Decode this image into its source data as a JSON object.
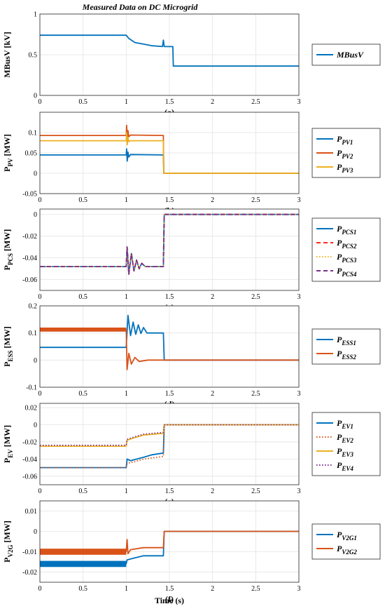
{
  "chart_data": {
    "title": "Measured Data on DC Microgrid",
    "xlabel": "Time (s)",
    "x_ticks": [
      "0",
      "0.5",
      "1",
      "1.5",
      "2",
      "2.5",
      "3"
    ],
    "panels": [
      {
        "type": "line",
        "label": "(a)",
        "ylabel": {
          "main": "MBusV [kV]",
          "sub": ""
        },
        "ylim": [
          0,
          1.0
        ],
        "y_ticks": [
          0,
          0.5,
          1
        ],
        "y_tick_labels": [
          "0",
          "0.5",
          "1"
        ],
        "xlim": [
          0,
          3
        ],
        "grid": true,
        "legend_position": "right",
        "series": [
          {
            "name": "MBusV",
            "label_sub": "",
            "color": "#0072BD",
            "dash": "solid",
            "points": [
              [
                0,
                0.74
              ],
              [
                1.0,
                0.74
              ],
              [
                1.03,
                0.7
              ],
              [
                1.1,
                0.65
              ],
              [
                1.2,
                0.63
              ],
              [
                1.3,
                0.61
              ],
              [
                1.42,
                0.6
              ],
              [
                1.43,
                0.68
              ],
              [
                1.44,
                0.6
              ],
              [
                1.54,
                0.6
              ],
              [
                1.545,
                0.36
              ],
              [
                3,
                0.36
              ]
            ]
          }
        ]
      },
      {
        "type": "line",
        "label": "(b)",
        "ylabel": {
          "main": "P",
          "sub": "PV",
          "unit": " [MW]"
        },
        "ylim": [
          -0.05,
          0.15
        ],
        "y_ticks": [
          -0.05,
          0,
          0.05,
          0.1
        ],
        "y_tick_labels": [
          "-0.05",
          "0",
          "0.05",
          "0.1"
        ],
        "xlim": [
          0,
          3
        ],
        "grid": true,
        "legend_position": "right",
        "series": [
          {
            "name": "P",
            "label_sub": "PV1",
            "color": "#0072BD",
            "dash": "solid",
            "points": [
              [
                0,
                0.045
              ],
              [
                1.0,
                0.045
              ],
              [
                1.005,
                0.06
              ],
              [
                1.012,
                0.03
              ],
              [
                1.02,
                0.052
              ],
              [
                1.03,
                0.04
              ],
              [
                1.05,
                0.046
              ],
              [
                1.43,
                0.045
              ],
              [
                1.435,
                0
              ],
              [
                3,
                0
              ]
            ]
          },
          {
            "name": "P",
            "label_sub": "PV2",
            "color": "#D95319",
            "dash": "solid",
            "points": [
              [
                0,
                0.093
              ],
              [
                1.0,
                0.093
              ],
              [
                1.005,
                0.118
              ],
              [
                1.012,
                0.085
              ],
              [
                1.02,
                0.105
              ],
              [
                1.03,
                0.09
              ],
              [
                1.05,
                0.094
              ],
              [
                1.43,
                0.093
              ],
              [
                1.435,
                0
              ],
              [
                3,
                0
              ]
            ]
          },
          {
            "name": "P",
            "label_sub": "PV3",
            "color": "#EDB120",
            "dash": "solid",
            "points": [
              [
                0,
                0.08
              ],
              [
                1.0,
                0.08
              ],
              [
                1.005,
                0.1
              ],
              [
                1.012,
                0.07
              ],
              [
                1.02,
                0.088
              ],
              [
                1.03,
                0.078
              ],
              [
                1.05,
                0.08
              ],
              [
                1.43,
                0.08
              ],
              [
                1.435,
                0
              ],
              [
                3,
                0
              ]
            ]
          }
        ]
      },
      {
        "type": "line",
        "label": "(c)",
        "ylabel": {
          "main": "P",
          "sub": "PCS",
          "unit": " [MW]"
        },
        "ylim": [
          -0.07,
          0.005
        ],
        "y_ticks": [
          -0.06,
          -0.04,
          -0.02,
          0
        ],
        "y_tick_labels": [
          "-0.06",
          "-0.04",
          "-0.02",
          "0"
        ],
        "xlim": [
          0,
          3
        ],
        "grid": true,
        "legend_position": "right",
        "series": [
          {
            "name": "P",
            "label_sub": "PCS1",
            "color": "#0072BD",
            "dash": "solid",
            "points": [
              [
                0,
                -0.048
              ],
              [
                1.0,
                -0.048
              ],
              [
                1.01,
                -0.03
              ],
              [
                1.03,
                -0.055
              ],
              [
                1.06,
                -0.036
              ],
              [
                1.09,
                -0.052
              ],
              [
                1.12,
                -0.042
              ],
              [
                1.15,
                -0.05
              ],
              [
                1.18,
                -0.045
              ],
              [
                1.22,
                -0.048
              ],
              [
                1.43,
                -0.048
              ],
              [
                1.44,
                0
              ],
              [
                3,
                0
              ]
            ]
          },
          {
            "name": "P",
            "label_sub": "PCS2",
            "color": "#FF2A1A",
            "dash": "dashed",
            "points": [
              [
                0,
                -0.048
              ],
              [
                1.0,
                -0.048
              ],
              [
                1.01,
                -0.03
              ],
              [
                1.03,
                -0.055
              ],
              [
                1.06,
                -0.036
              ],
              [
                1.09,
                -0.052
              ],
              [
                1.12,
                -0.042
              ],
              [
                1.15,
                -0.05
              ],
              [
                1.18,
                -0.045
              ],
              [
                1.22,
                -0.048
              ],
              [
                1.43,
                -0.048
              ],
              [
                1.44,
                0
              ],
              [
                3,
                0
              ]
            ]
          },
          {
            "name": "P",
            "label_sub": "PCS3",
            "color": "#EDB120",
            "dash": "dotted",
            "points": [
              [
                0,
                -0.048
              ],
              [
                1.0,
                -0.048
              ],
              [
                1.01,
                -0.03
              ],
              [
                1.03,
                -0.055
              ],
              [
                1.06,
                -0.036
              ],
              [
                1.09,
                -0.052
              ],
              [
                1.12,
                -0.042
              ],
              [
                1.15,
                -0.05
              ],
              [
                1.18,
                -0.045
              ],
              [
                1.22,
                -0.048
              ],
              [
                1.43,
                -0.048
              ],
              [
                1.44,
                0
              ],
              [
                3,
                0
              ]
            ]
          },
          {
            "name": "P",
            "label_sub": "PCS4",
            "color": "#7E2F8E",
            "dash": "dashed",
            "points": [
              [
                0,
                -0.048
              ],
              [
                1.0,
                -0.048
              ],
              [
                1.01,
                -0.03
              ],
              [
                1.03,
                -0.055
              ],
              [
                1.06,
                -0.036
              ],
              [
                1.09,
                -0.052
              ],
              [
                1.12,
                -0.042
              ],
              [
                1.15,
                -0.05
              ],
              [
                1.18,
                -0.045
              ],
              [
                1.22,
                -0.048
              ],
              [
                1.43,
                -0.048
              ],
              [
                1.44,
                0
              ],
              [
                3,
                0
              ]
            ]
          }
        ]
      },
      {
        "type": "line",
        "label": "(d)",
        "ylabel": {
          "main": "P",
          "sub": "ESS",
          "unit": " [MW]"
        },
        "ylim": [
          -0.1,
          0.2
        ],
        "y_ticks": [
          -0.1,
          0,
          0.1,
          0.2
        ],
        "y_tick_labels": [
          "-0.1",
          "0",
          "0.1",
          "0.2"
        ],
        "xlim": [
          0,
          3
        ],
        "grid": true,
        "legend_position": "right",
        "series": [
          {
            "name": "P",
            "label_sub": "ESS1",
            "color": "#0072BD",
            "dash": "solid",
            "points": [
              [
                0,
                0.047
              ],
              [
                1.0,
                0.047
              ],
              [
                1.02,
                0.165
              ],
              [
                1.05,
                0.09
              ],
              [
                1.08,
                0.14
              ],
              [
                1.11,
                0.095
              ],
              [
                1.14,
                0.13
              ],
              [
                1.17,
                0.098
              ],
              [
                1.2,
                0.12
              ],
              [
                1.24,
                0.1
              ],
              [
                1.43,
                0.1
              ],
              [
                1.44,
                0
              ],
              [
                3,
                0
              ]
            ]
          },
          {
            "name": "P",
            "label_sub": "ESS2",
            "color": "#D95319",
            "dash": "solid",
            "band": [
              0.105,
              0.12
            ],
            "points": [
              [
                0,
                0.113
              ],
              [
                1.0,
                0.113
              ],
              [
                1.01,
                -0.035
              ],
              [
                1.03,
                0.025
              ],
              [
                1.06,
                -0.015
              ],
              [
                1.1,
                0.01
              ],
              [
                1.15,
                -0.005
              ],
              [
                1.25,
                0
              ],
              [
                3,
                0
              ]
            ]
          }
        ]
      },
      {
        "type": "line",
        "label": "(e)",
        "ylabel": {
          "main": "P",
          "sub": "EV",
          "unit": " [MW]"
        },
        "ylim": [
          -0.07,
          0.025
        ],
        "y_ticks": [
          -0.06,
          -0.04,
          -0.02,
          0,
          0.02
        ],
        "y_tick_labels": [
          "-0.06",
          "-0.04",
          "-0.02",
          "0",
          "0.02"
        ],
        "xlim": [
          0,
          3
        ],
        "grid": true,
        "legend_position": "right",
        "series": [
          {
            "name": "P",
            "label_sub": "EV1",
            "color": "#0072BD",
            "dash": "solid",
            "points": [
              [
                0,
                -0.05
              ],
              [
                1.0,
                -0.05
              ],
              [
                1.01,
                -0.04
              ],
              [
                1.05,
                -0.042
              ],
              [
                1.2,
                -0.038
              ],
              [
                1.3,
                -0.035
              ],
              [
                1.43,
                -0.033
              ],
              [
                1.44,
                0
              ],
              [
                3,
                0
              ]
            ]
          },
          {
            "name": "P",
            "label_sub": "EV2",
            "color": "#D95319",
            "dash": "dotted",
            "points": [
              [
                0,
                -0.05
              ],
              [
                1.0,
                -0.05
              ],
              [
                1.01,
                -0.045
              ],
              [
                1.1,
                -0.043
              ],
              [
                1.2,
                -0.04
              ],
              [
                1.43,
                -0.037
              ],
              [
                1.44,
                0
              ],
              [
                3,
                0
              ]
            ]
          },
          {
            "name": "P",
            "label_sub": "EV3",
            "color": "#EDB120",
            "dash": "solid",
            "points": [
              [
                0,
                -0.025
              ],
              [
                1.0,
                -0.025
              ],
              [
                1.01,
                -0.018
              ],
              [
                1.1,
                -0.015
              ],
              [
                1.2,
                -0.012
              ],
              [
                1.43,
                -0.01
              ],
              [
                1.44,
                0
              ],
              [
                3,
                0
              ]
            ]
          },
          {
            "name": "P",
            "label_sub": "EV4",
            "color": "#7E2F8E",
            "dash": "dotted",
            "points": [
              [
                0,
                -0.024
              ],
              [
                1.0,
                -0.024
              ],
              [
                1.01,
                -0.017
              ],
              [
                1.1,
                -0.014
              ],
              [
                1.2,
                -0.011
              ],
              [
                1.43,
                -0.009
              ],
              [
                1.44,
                0
              ],
              [
                3,
                0
              ]
            ]
          }
        ]
      },
      {
        "type": "line",
        "label": "(f)",
        "ylabel": {
          "main": "P",
          "sub": "V2G",
          "unit": " [MW]"
        },
        "ylim": [
          -0.025,
          0.015
        ],
        "y_ticks": [
          -0.02,
          -0.01,
          0,
          0.01
        ],
        "y_tick_labels": [
          "-0.02",
          "-0.01",
          "0",
          "0.01"
        ],
        "xlim": [
          0,
          3
        ],
        "grid": true,
        "legend_position": "right",
        "series": [
          {
            "name": "P",
            "label_sub": "V2G1",
            "color": "#0072BD",
            "dash": "solid",
            "band": [
              -0.0175,
              -0.0145
            ],
            "points": [
              [
                0,
                -0.016
              ],
              [
                1.0,
                -0.016
              ],
              [
                1.01,
                -0.014
              ],
              [
                1.1,
                -0.013
              ],
              [
                1.2,
                -0.012
              ],
              [
                1.43,
                -0.012
              ],
              [
                1.44,
                0
              ],
              [
                3,
                0
              ]
            ]
          },
          {
            "name": "P",
            "label_sub": "V2G2",
            "color": "#D95319",
            "dash": "solid",
            "band": [
              -0.0115,
              -0.0085
            ],
            "points": [
              [
                0,
                -0.01
              ],
              [
                1.0,
                -0.01
              ],
              [
                1.01,
                -0.004
              ],
              [
                1.02,
                -0.011
              ],
              [
                1.05,
                -0.009
              ],
              [
                1.2,
                -0.008
              ],
              [
                1.43,
                -0.008
              ],
              [
                1.44,
                0
              ],
              [
                3,
                0
              ]
            ]
          }
        ]
      }
    ]
  }
}
